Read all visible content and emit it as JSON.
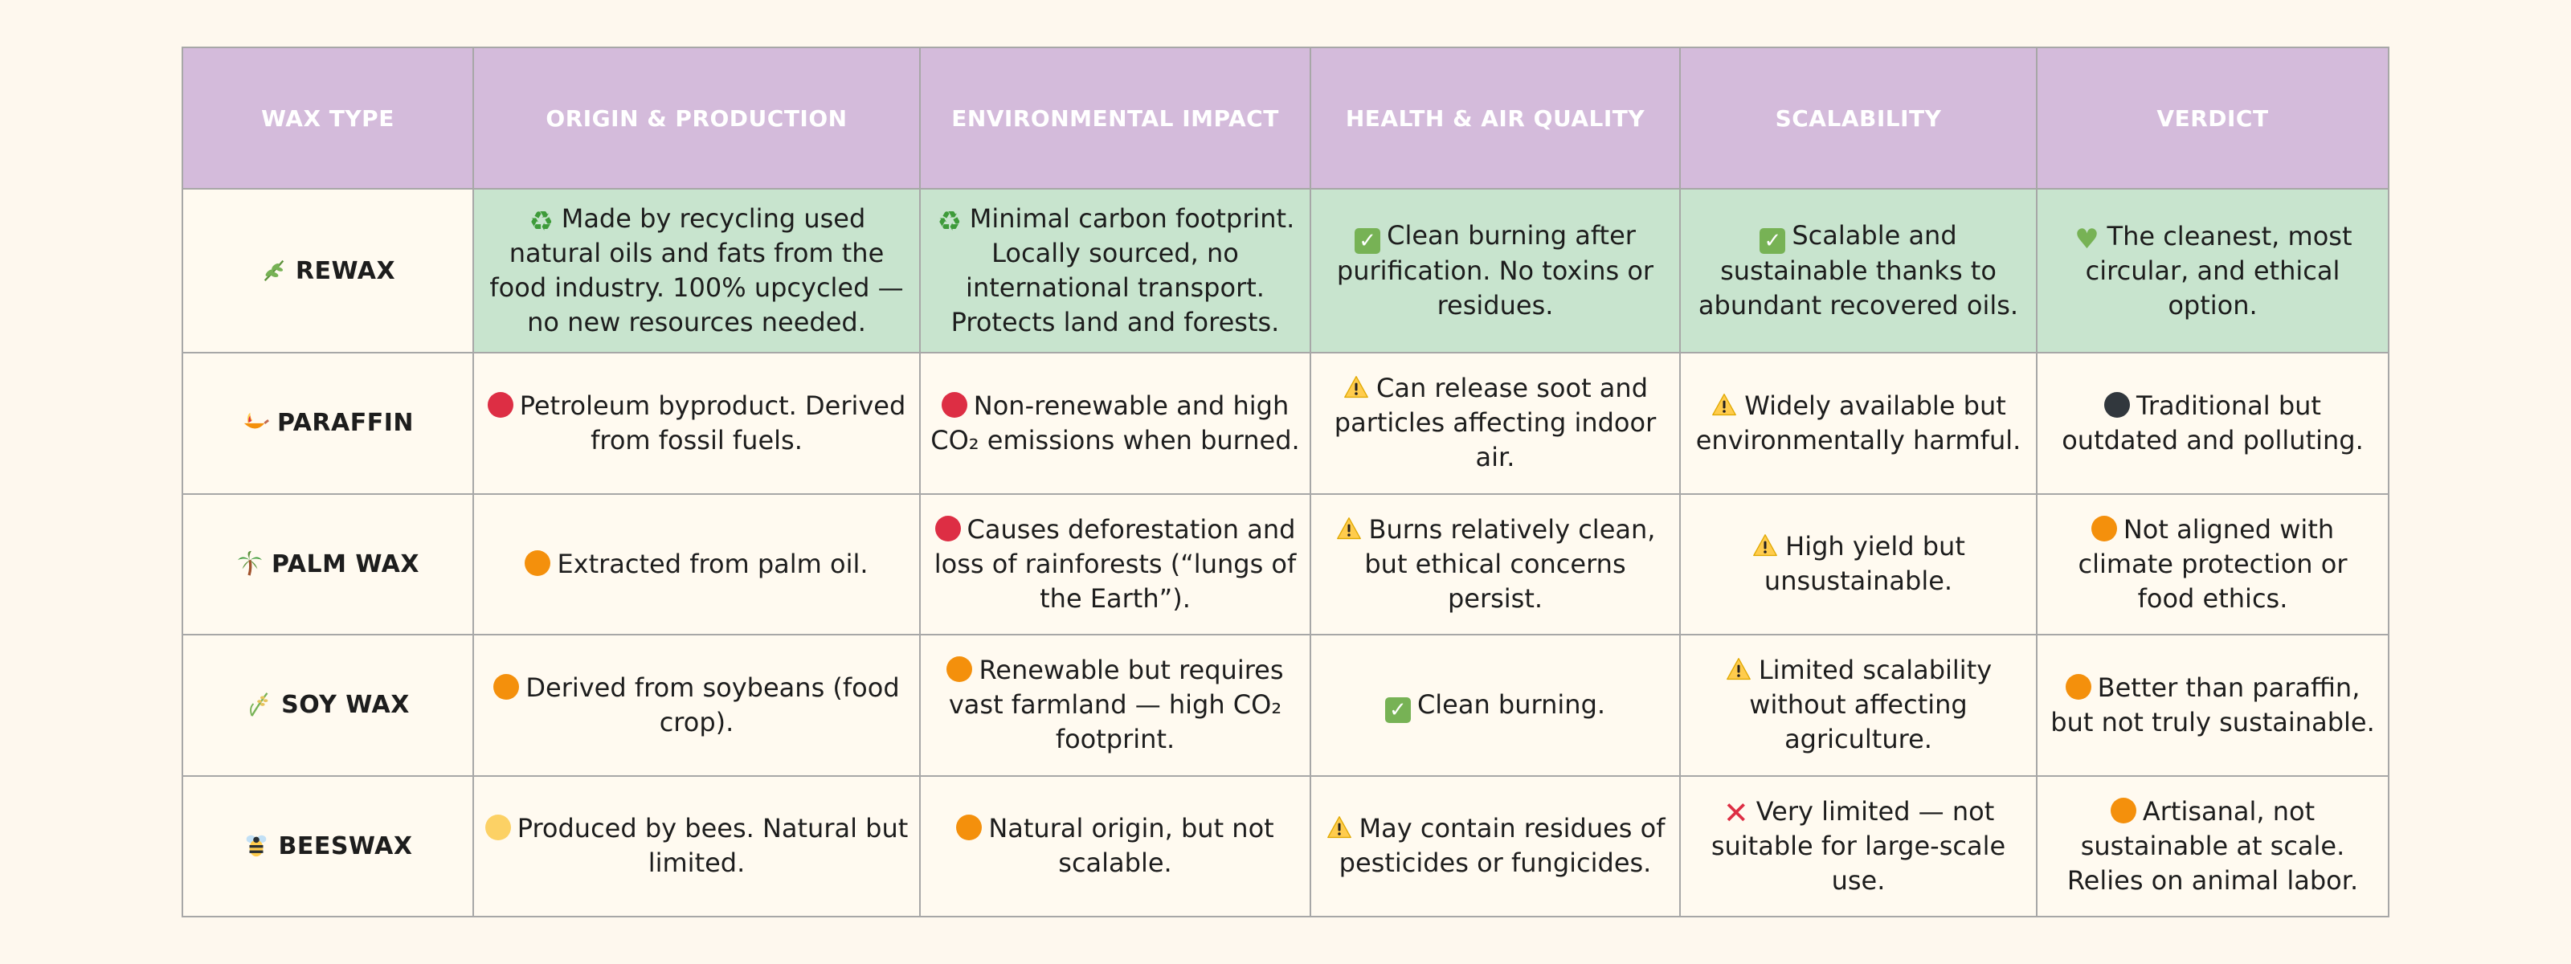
{
  "headers": [
    "WAX TYPE",
    "ORIGIN & PRODUCTION",
    "ENVIRONMENTAL IMPACT",
    "HEALTH & AIR QUALITY",
    "SCALABILITY",
    "VERDICT"
  ],
  "colors": {
    "header_bg": "#d4bbdb",
    "highlight_row_bg": "#c8e4ce",
    "page_bg": "#fef8ee",
    "red": "#dd2e44",
    "orange": "#f4900c",
    "green": "#77b255"
  },
  "rows": [
    {
      "type": "REWAX",
      "type_icon": "herb-icon",
      "origin": "Made by recycling used natural oils and fats from the food industry. 100% upcycled — no new resources needed.",
      "origin_icon": "recycle-icon",
      "environment": "Minimal carbon footprint. Locally sourced, no international transport. Protects land and forests.",
      "environment_icon": "recycle-icon",
      "health": "Clean burning after purification. No toxins or residues.",
      "health_icon": "check-mark-icon",
      "scalability": "Scalable and sustainable thanks to abundant recovered oils.",
      "scalability_icon": "check-mark-icon",
      "verdict": "The cleanest, most circular, and ethical option.",
      "verdict_icon": "green-heart-icon"
    },
    {
      "type": "PARAFFIN",
      "type_icon": "oil-lamp-icon",
      "origin": "Petroleum byproduct. Derived from fossil fuels.",
      "origin_icon": "red-circle-icon",
      "environment": "Non-renewable and high CO₂ emissions when burned.",
      "environment_icon": "red-circle-icon",
      "health": "Can release soot and particles affecting indoor air.",
      "health_icon": "warning-icon",
      "scalability": "Widely available but environmentally harmful.",
      "scalability_icon": "warning-icon",
      "verdict": "Traditional but outdated and polluting.",
      "verdict_icon": "black-circle-icon"
    },
    {
      "type": "PALM WAX",
      "type_icon": "palm-tree-icon",
      "origin": "Extracted from palm oil.",
      "origin_icon": "orange-circle-icon",
      "environment": "Causes deforestation and loss of rainforests (“lungs of the Earth”).",
      "environment_icon": "red-circle-icon",
      "health": "Burns relatively clean, but ethical concerns persist.",
      "health_icon": "warning-icon",
      "scalability": "High yield but unsustainable.",
      "scalability_icon": "warning-icon",
      "verdict": "Not aligned with climate protection or food ethics.",
      "verdict_icon": "orange-circle-icon"
    },
    {
      "type": "SOY WAX",
      "type_icon": "rice-plant-icon",
      "origin": "Derived from soybeans (food crop).",
      "origin_icon": "orange-circle-icon",
      "environment": "Renewable but requires vast farmland — high CO₂ footprint.",
      "environment_icon": "orange-circle-icon",
      "health": "Clean burning.",
      "health_icon": "check-mark-icon",
      "scalability": "Limited scalability without affecting agriculture.",
      "scalability_icon": "warning-icon",
      "verdict": "Better than paraffin, but not truly sustainable.",
      "verdict_icon": "orange-circle-icon"
    },
    {
      "type": "BEESWAX",
      "type_icon": "bee-icon",
      "origin": "Produced by bees. Natural but limited.",
      "origin_icon": "yellow-circle-icon",
      "environment": "Natural origin, but not scalable.",
      "environment_icon": "orange-circle-icon",
      "health": "May contain residues of pesticides or fungicides.",
      "health_icon": "warning-icon",
      "scalability": "Very limited — not suitable for large-scale use.",
      "scalability_icon": "cross-mark-icon",
      "verdict": "Artisanal, not sustainable at scale. Relies on animal labor.",
      "verdict_icon": "orange-circle-icon"
    }
  ]
}
